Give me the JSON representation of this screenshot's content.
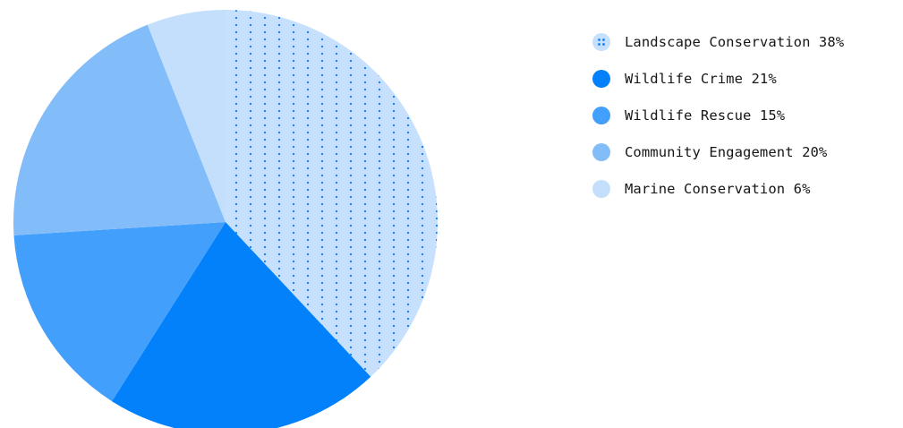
{
  "chart_data": {
    "type": "pie",
    "title": "",
    "slices": [
      {
        "label": "Landscape Conservation",
        "value": 38,
        "color": "#c6e0fd",
        "pattern": "dots",
        "pattern_color": "#0f7ef6",
        "legend_text": "Landscape Conservation 38%"
      },
      {
        "label": "Wildlife Crime",
        "value": 21,
        "color": "#0281fb",
        "pattern": "none",
        "legend_text": "Wildlife Crime 21%"
      },
      {
        "label": "Wildlife Rescue",
        "value": 15,
        "color": "#439ffc",
        "pattern": "none",
        "legend_text": "Wildlife Rescue 15%"
      },
      {
        "label": "Community Engagement",
        "value": 20,
        "color": "#82bdfa",
        "pattern": "none",
        "legend_text": "Community Engagement 20%"
      },
      {
        "label": "Marine Conservation",
        "value": 6,
        "color": "#c3dffc",
        "pattern": "none",
        "legend_text": "Marine Conservation 6%"
      }
    ],
    "start_angle_deg": 0,
    "direction": "clockwise",
    "legend_position": "top-right"
  }
}
